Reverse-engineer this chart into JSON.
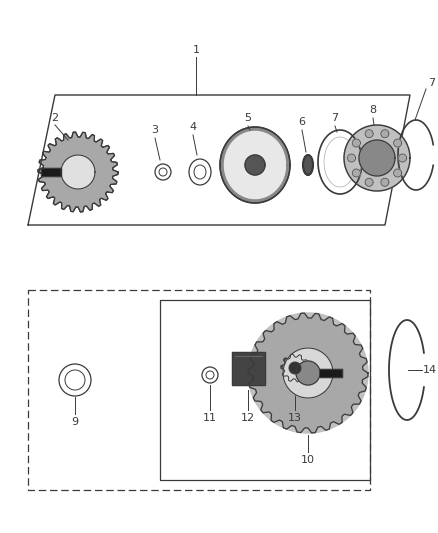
{
  "bg_color": "#ffffff",
  "line_color": "#3a3a3a",
  "label_color": "#3a3a3a",
  "figure_width": 4.38,
  "figure_height": 5.33,
  "dpi": 100,
  "top_box": {
    "x": [
      0.06,
      0.85,
      0.94,
      0.15,
      0.06
    ],
    "y": [
      0.505,
      0.505,
      0.715,
      0.715,
      0.505
    ]
  },
  "bottom_box_outer": {
    "x": [
      0.1,
      0.82,
      0.82,
      0.1,
      0.1
    ],
    "y": [
      0.265,
      0.265,
      0.495,
      0.495,
      0.265
    ],
    "dashed": true
  },
  "bottom_box_inner": {
    "x": [
      0.29,
      0.82,
      0.82,
      0.29,
      0.29
    ],
    "y": [
      0.275,
      0.275,
      0.49,
      0.49,
      0.275
    ],
    "dashed": false
  }
}
